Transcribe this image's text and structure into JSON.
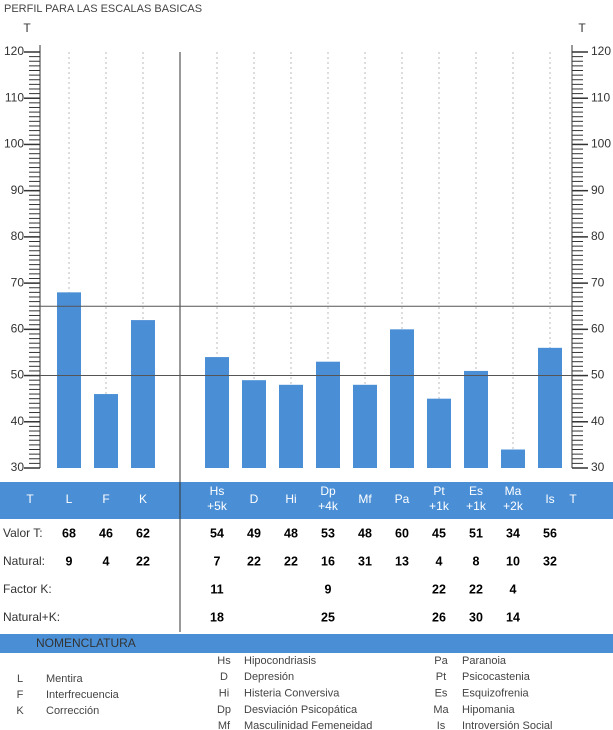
{
  "title": "PERFIL PARA LAS ESCALAS BASICAS",
  "chart_data": {
    "type": "bar",
    "y_axis_label": "T",
    "categories": [
      "L",
      "F",
      "K",
      "Hs",
      "D",
      "Hi",
      "Dp",
      "Mf",
      "Pa",
      "Pt",
      "Es",
      "Ma",
      "Is"
    ],
    "k_corrections": [
      null,
      null,
      null,
      "+5k",
      null,
      null,
      "+4k",
      null,
      null,
      "+1k",
      "+1k",
      "+2k",
      null
    ],
    "values": [
      68,
      46,
      62,
      54,
      49,
      48,
      53,
      48,
      60,
      45,
      51,
      34,
      56
    ],
    "color": "#4a8fd6",
    "ylim": [
      30,
      120
    ],
    "yticks": [
      30,
      40,
      50,
      60,
      70,
      80,
      90,
      100,
      110,
      120
    ],
    "minor_tick_interval": 1,
    "reference_lines": [
      50,
      65
    ],
    "grid": true
  },
  "table": {
    "rows": [
      {
        "label": "Natural:",
        "values": [
          9,
          4,
          22,
          7,
          22,
          22,
          16,
          31,
          13,
          4,
          8,
          10,
          32
        ]
      },
      {
        "label": "Factor K:",
        "values": [
          null,
          null,
          null,
          11,
          null,
          null,
          9,
          null,
          null,
          22,
          22,
          4,
          null
        ]
      },
      {
        "label": "Natural+K:",
        "values": [
          null,
          null,
          null,
          18,
          null,
          null,
          25,
          null,
          null,
          26,
          30,
          14,
          null
        ]
      }
    ],
    "valor_label": "Valor T:"
  },
  "nomenclature": {
    "title": "NOMENCLATURA",
    "columns": [
      [
        {
          "code": "L",
          "name": "Mentira"
        },
        {
          "code": "F",
          "name": "Interfrecuencia"
        },
        {
          "code": "K",
          "name": "Corrección"
        }
      ],
      [
        {
          "code": "Hs",
          "name": "Hipocondriasis"
        },
        {
          "code": "D",
          "name": "Depresión"
        },
        {
          "code": "Hi",
          "name": "Histeria Conversiva"
        },
        {
          "code": "Dp",
          "name": "Desviación Psicopática"
        },
        {
          "code": "Mf",
          "name": "Masculinidad Femeneidad"
        }
      ],
      [
        {
          "code": "Pa",
          "name": "Paranoia"
        },
        {
          "code": "Pt",
          "name": "Psicocastenia"
        },
        {
          "code": "Es",
          "name": "Esquizofrenia"
        },
        {
          "code": "Ma",
          "name": "Hipomania"
        },
        {
          "code": "Is",
          "name": "Introversión Social"
        }
      ]
    ]
  }
}
